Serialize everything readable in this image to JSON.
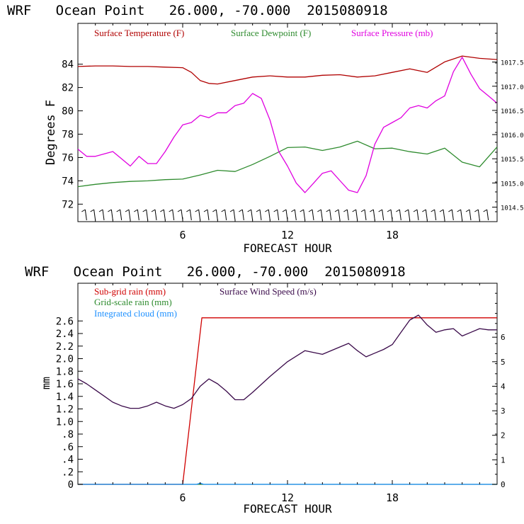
{
  "chart_data": [
    {
      "type": "line",
      "title": "WRF   Ocean Point   26.000, -70.000  2015080918",
      "xlabel": "FORECAST HOUR",
      "ylabel": "Degrees F",
      "xlim": [
        0,
        24
      ],
      "x_ticks": [
        6,
        12,
        18
      ],
      "ylim": [
        70.5,
        87.5
      ],
      "y_ticks": [
        72,
        74,
        76,
        78,
        80,
        82,
        84
      ],
      "y2lim": [
        1014.2,
        1018.3
      ],
      "y2_ticks": [
        "1014.5",
        "1015.0",
        "1015.5",
        "1016.0",
        "1016.5",
        "1017.0",
        "1017.5"
      ],
      "legend": "top-left, inside plot",
      "series": [
        {
          "name": "Surface Temperature (F)",
          "axis": "left",
          "color": "#b00000",
          "x": [
            0,
            1,
            2,
            3,
            4,
            5,
            6,
            6.5,
            7,
            7.5,
            8,
            9,
            10,
            11,
            12,
            13,
            14,
            15,
            16,
            17,
            18,
            19,
            20,
            21,
            22,
            23,
            24
          ],
          "y": [
            83.8,
            83.85,
            83.85,
            83.8,
            83.8,
            83.75,
            83.7,
            83.3,
            82.6,
            82.35,
            82.3,
            82.6,
            82.9,
            83.0,
            82.9,
            82.9,
            83.05,
            83.1,
            82.9,
            83.0,
            83.3,
            83.6,
            83.3,
            84.2,
            84.7,
            84.5,
            84.4
          ]
        },
        {
          "name": "Surface Dewpoint (F)",
          "axis": "left",
          "color": "#2e8b2e",
          "x": [
            0,
            1,
            2,
            3,
            4,
            5,
            6,
            7,
            8,
            9,
            10,
            11,
            12,
            13,
            14,
            15,
            16,
            17,
            18,
            19,
            20,
            21,
            22,
            23,
            24
          ],
          "y": [
            73.5,
            73.7,
            73.85,
            73.95,
            74.0,
            74.1,
            74.15,
            74.5,
            74.9,
            74.8,
            75.4,
            76.1,
            76.85,
            76.9,
            76.6,
            76.9,
            77.4,
            76.75,
            76.8,
            76.5,
            76.3,
            76.8,
            75.6,
            75.2,
            76.9
          ]
        },
        {
          "name": "Surface Pressure (mb)",
          "axis": "right",
          "color": "#e000e0",
          "x": [
            0,
            0.5,
            1,
            1.5,
            2,
            2.5,
            3,
            3.5,
            4,
            4.5,
            5,
            5.5,
            6,
            6.5,
            7,
            7.5,
            8,
            8.5,
            9,
            9.5,
            10,
            10.5,
            11,
            11.5,
            12,
            12.5,
            13,
            13.5,
            14,
            14.5,
            15,
            15.5,
            16,
            16.5,
            17,
            17.5,
            18,
            18.5,
            19,
            19.5,
            20,
            20.5,
            21,
            21.5,
            22,
            22.5,
            23,
            23.5,
            24
          ],
          "y": [
            1015.7,
            1015.55,
            1015.55,
            1015.6,
            1015.65,
            1015.5,
            1015.35,
            1015.55,
            1015.4,
            1015.4,
            1015.65,
            1015.95,
            1016.2,
            1016.25,
            1016.4,
            1016.35,
            1016.45,
            1016.45,
            1016.6,
            1016.65,
            1016.85,
            1016.75,
            1016.3,
            1015.65,
            1015.35,
            1015.0,
            1014.8,
            1015.0,
            1015.2,
            1015.25,
            1015.05,
            1014.85,
            1014.8,
            1015.15,
            1015.8,
            1016.15,
            1016.25,
            1016.35,
            1016.55,
            1016.6,
            1016.55,
            1016.7,
            1016.8,
            1017.3,
            1017.6,
            1017.25,
            1016.95,
            1016.8,
            1016.65
          ]
        }
      ],
      "wind_barbs": true
    },
    {
      "type": "line",
      "title": "WRF   Ocean Point   26.000, -70.000  2015080918",
      "xlabel": "FORECAST HOUR",
      "ylabel": "mm",
      "xlim": [
        0,
        24
      ],
      "x_ticks": [
        6,
        12,
        18
      ],
      "ylim": [
        0,
        3.2
      ],
      "y_ticks": [
        "0",
        ".2",
        ".4",
        ".6",
        ".8",
        "1.0",
        "1.2",
        "1.4",
        "1.6",
        "1.8",
        "2.0",
        "2.2",
        "2.4",
        "2.6"
      ],
      "y2lim": [
        0,
        8.2
      ],
      "y2_ticks": [
        "0",
        "1",
        "2",
        "3",
        "4",
        "5",
        "6"
      ],
      "legend": "top-left, inside plot",
      "series": [
        {
          "name": "Sub-grid rain (mm)",
          "axis": "left",
          "color": "#d00000",
          "x": [
            0,
            6,
            7.1,
            24
          ],
          "y": [
            0,
            0,
            2.65,
            2.65
          ]
        },
        {
          "name": "Grid-scale rain (mm)",
          "axis": "left",
          "color": "#2e8b2e",
          "x": [
            0,
            24
          ],
          "y": [
            0,
            0
          ]
        },
        {
          "name": "Integrated cloud (mm)",
          "axis": "left",
          "color": "#1e90ff",
          "x": [
            0,
            6.8,
            7.0,
            7.2,
            24
          ],
          "y": [
            0,
            0,
            0.02,
            0,
            0
          ]
        },
        {
          "name": "Surface Wind Speed (m/s)",
          "axis": "right",
          "color": "#3a0a4a",
          "x": [
            0,
            0.5,
            1,
            1.5,
            2,
            2.5,
            3,
            3.5,
            4,
            4.5,
            5,
            5.5,
            6,
            6.5,
            7,
            7.5,
            8,
            8.5,
            9,
            9.5,
            10,
            11,
            12,
            13,
            14,
            15,
            15.5,
            16,
            16.5,
            17,
            17.5,
            18,
            18.5,
            19,
            19.5,
            20,
            20.5,
            21,
            21.5,
            22,
            22.5,
            23,
            23.5,
            24
          ],
          "y": [
            4.3,
            4.1,
            3.85,
            3.6,
            3.35,
            3.2,
            3.1,
            3.1,
            3.2,
            3.35,
            3.2,
            3.1,
            3.25,
            3.5,
            4.0,
            4.3,
            4.1,
            3.8,
            3.45,
            3.45,
            3.75,
            4.4,
            5.0,
            5.45,
            5.3,
            5.6,
            5.75,
            5.45,
            5.2,
            5.35,
            5.5,
            5.7,
            6.2,
            6.7,
            6.9,
            6.5,
            6.2,
            6.3,
            6.35,
            6.05,
            6.2,
            6.35,
            6.3,
            6.3
          ]
        }
      ]
    }
  ]
}
